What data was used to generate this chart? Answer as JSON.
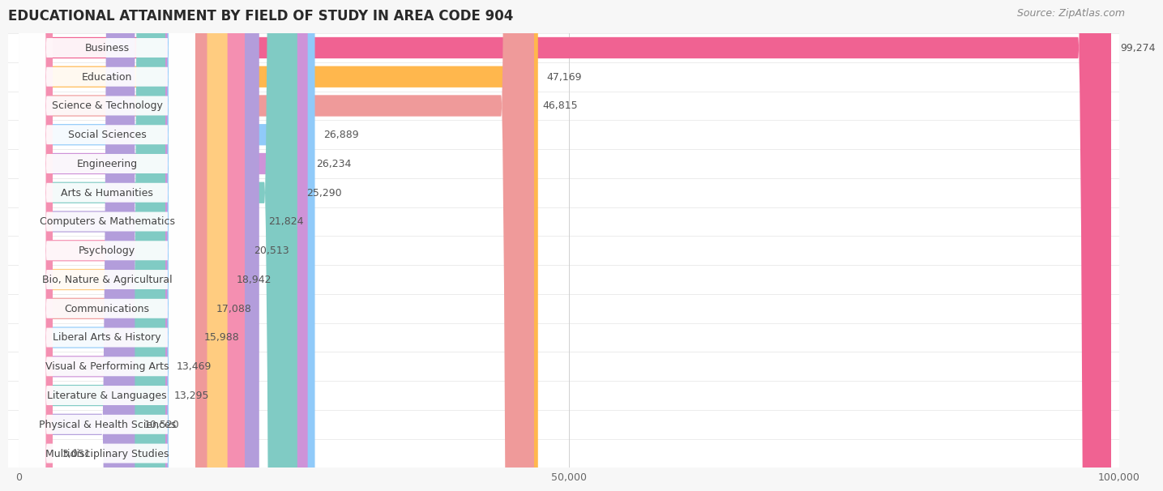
{
  "title": "EDUCATIONAL ATTAINMENT BY FIELD OF STUDY IN AREA CODE 904",
  "source": "Source: ZipAtlas.com",
  "categories": [
    "Business",
    "Education",
    "Science & Technology",
    "Social Sciences",
    "Engineering",
    "Arts & Humanities",
    "Computers & Mathematics",
    "Psychology",
    "Bio, Nature & Agricultural",
    "Communications",
    "Liberal Arts & History",
    "Visual & Performing Arts",
    "Literature & Languages",
    "Physical & Health Sciences",
    "Multidisciplinary Studies"
  ],
  "values": [
    99274,
    47169,
    46815,
    26889,
    26234,
    25290,
    21824,
    20513,
    18942,
    17088,
    15988,
    13469,
    13295,
    10520,
    3051
  ],
  "bar_colors": [
    "#F06292",
    "#FFB74D",
    "#EF9A9A",
    "#90CAF9",
    "#CE93D8",
    "#80CBC4",
    "#B39DDB",
    "#F48FB1",
    "#FFCC80",
    "#EF9A9A",
    "#90CAF9",
    "#CE93D8",
    "#80CBC4",
    "#B39DDB",
    "#F48FB1"
  ],
  "xlim": [
    0,
    100000
  ],
  "xticks": [
    0,
    50000,
    100000
  ],
  "xtick_labels": [
    "0",
    "50,000",
    "100,000"
  ],
  "background_color": "#f7f7f7",
  "row_bg_color": "#ffffff",
  "row_alt_color": "#f5f5f5",
  "title_fontsize": 12,
  "source_fontsize": 9,
  "label_fontsize": 9,
  "value_fontsize": 9
}
